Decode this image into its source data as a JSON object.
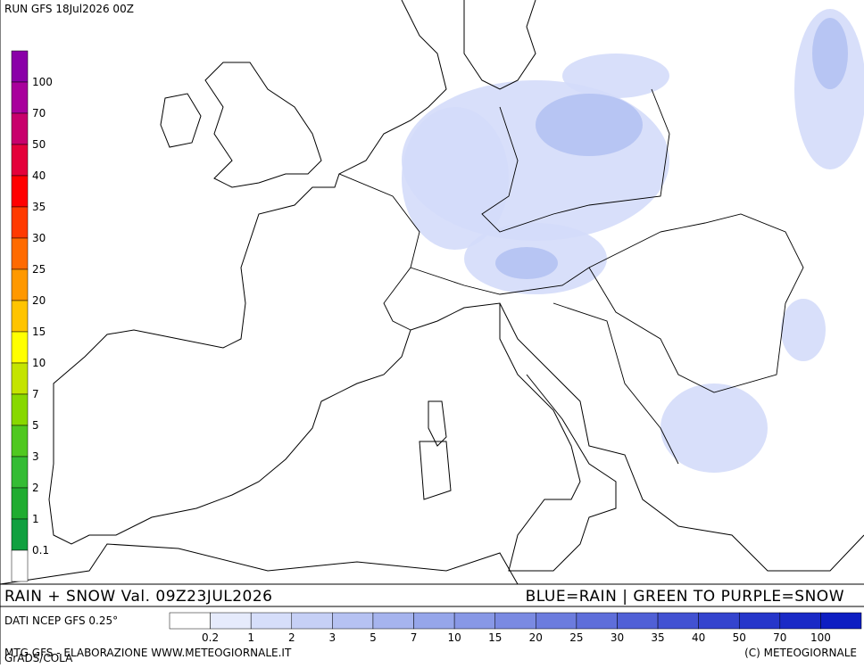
{
  "header": {
    "run": "RUN GFS 18Jul2026 00Z"
  },
  "snow_legend": {
    "labels": [
      100,
      70,
      50,
      40,
      35,
      30,
      25,
      20,
      15,
      10,
      7,
      5,
      3,
      2,
      1,
      0.1
    ],
    "colors": [
      "#8a00a8",
      "#a8009c",
      "#c8006c",
      "#e4003a",
      "#ff0000",
      "#ff3a00",
      "#ff6a00",
      "#ff9800",
      "#ffc400",
      "#ffff00",
      "#c4e400",
      "#88d800",
      "#50c820",
      "#34bc34",
      "#20ac30",
      "#10a040",
      "#ffffff"
    ]
  },
  "rain_legend": {
    "labels": [
      0.2,
      1,
      2,
      3,
      5,
      7,
      10,
      15,
      20,
      25,
      30,
      35,
      40,
      50,
      70,
      100
    ],
    "colors": [
      "#ffffff",
      "#e6ebfc",
      "#d6defa",
      "#c6d0f6",
      "#b6c2f2",
      "#a6b4ee",
      "#96a6ea",
      "#8898e6",
      "#7a8ae2",
      "#6c7cde",
      "#5e6eda",
      "#5060d6",
      "#4252d2",
      "#3444ce",
      "#2636ca",
      "#1a2ac6",
      "#0e1ec2"
    ]
  },
  "footer": {
    "title": "RAIN + SNOW Val. 09Z23JUL2026",
    "note": "BLUE=RAIN | GREEN TO PURPLE=SNOW",
    "source": "DATI NCEP GFS 0.25°",
    "credit": "MTG GFS - ELABORAZIONE WWW.METEOGIORNALE.IT",
    "grads": "GrADS/COLA",
    "copyright": "(C) METEOGIORNALE"
  }
}
